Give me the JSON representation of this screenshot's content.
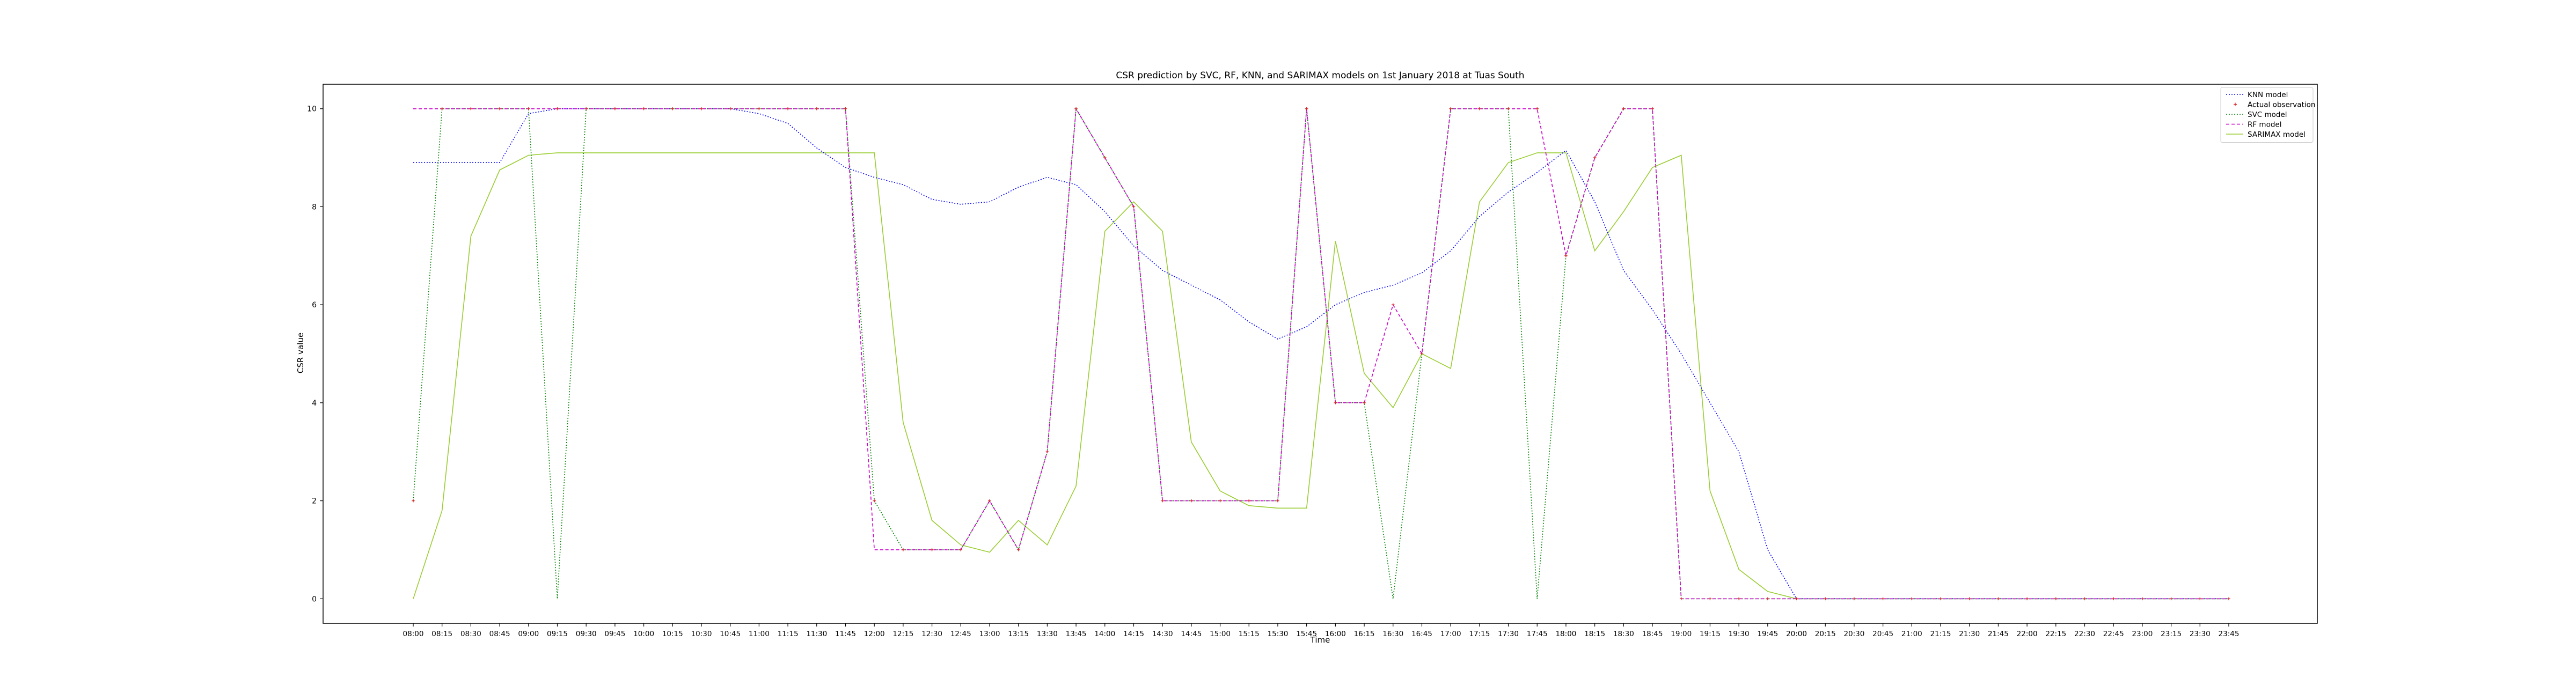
{
  "chart_data": {
    "type": "line",
    "title": "CSR prediction by SVC, RF, KNN, and SARIMAX models on 1st January 2018 at Tuas South",
    "xlabel": "Time",
    "ylabel": "CSR value",
    "ylim": [
      -0.5,
      10.5
    ],
    "yticks": [
      0,
      2,
      4,
      6,
      8,
      10
    ],
    "grid": false,
    "legend_position": "top-right",
    "categories": [
      "08:00",
      "08:15",
      "08:30",
      "08:45",
      "09:00",
      "09:15",
      "09:30",
      "09:45",
      "10:00",
      "10:15",
      "10:30",
      "10:45",
      "11:00",
      "11:15",
      "11:30",
      "11:45",
      "12:00",
      "12:15",
      "12:30",
      "12:45",
      "13:00",
      "13:15",
      "13:30",
      "13:45",
      "14:00",
      "14:15",
      "14:30",
      "14:45",
      "15:00",
      "15:15",
      "15:30",
      "15:45",
      "16:00",
      "16:15",
      "16:30",
      "16:45",
      "17:00",
      "17:15",
      "17:30",
      "17:45",
      "18:00",
      "18:15",
      "18:30",
      "18:45",
      "19:00",
      "19:15",
      "19:30",
      "19:45",
      "20:00",
      "20:15",
      "20:30",
      "20:45",
      "21:00",
      "21:15",
      "21:30",
      "21:45",
      "22:00",
      "22:15",
      "22:30",
      "22:45",
      "23:00",
      "23:15",
      "23:30",
      "23:45"
    ],
    "series": [
      {
        "name": "KNN model",
        "color": "#0000ff",
        "style": "dotted",
        "values": [
          8.9,
          8.9,
          8.9,
          8.9,
          9.9,
          10,
          10,
          10,
          10,
          10,
          10,
          10,
          9.9,
          9.7,
          9.2,
          8.8,
          8.6,
          8.45,
          8.15,
          8.05,
          8.1,
          8.4,
          8.6,
          8.45,
          7.9,
          7.2,
          6.7,
          6.4,
          6.1,
          5.65,
          5.3,
          5.55,
          6.0,
          6.25,
          6.4,
          6.65,
          7.1,
          7.8,
          8.3,
          8.7,
          9.15,
          8.1,
          6.7,
          5.9,
          5.0,
          4.0,
          3.0,
          1.0,
          0,
          0,
          0,
          0,
          0,
          0,
          0,
          0,
          0,
          0,
          0,
          0,
          0,
          0,
          0,
          0
        ]
      },
      {
        "name": "Actual observation",
        "color": "#d62728",
        "style": "markers",
        "values": [
          2,
          10,
          10,
          10,
          10,
          10,
          10,
          10,
          10,
          10,
          10,
          10,
          10,
          10,
          10,
          10,
          2,
          1,
          1,
          1,
          2,
          1,
          3,
          10,
          9,
          8,
          2,
          2,
          2,
          2,
          2,
          10,
          4,
          4,
          6,
          5,
          10,
          10,
          10,
          10,
          7,
          9,
          10,
          10,
          0,
          0,
          0,
          0,
          0,
          0,
          0,
          0,
          0,
          0,
          0,
          0,
          0,
          0,
          0,
          0,
          0,
          0,
          0,
          0
        ]
      },
      {
        "name": "SVC model",
        "color": "#008000",
        "style": "dotted",
        "values": [
          2,
          10,
          10,
          10,
          10,
          0,
          10,
          10,
          10,
          10,
          10,
          10,
          10,
          10,
          10,
          10,
          2,
          1,
          1,
          1,
          2,
          1,
          3,
          10,
          9,
          8,
          2,
          2,
          2,
          2,
          2,
          10,
          4,
          4,
          0,
          5,
          10,
          10,
          10,
          0,
          7,
          9,
          10,
          10,
          0,
          0,
          0,
          0,
          0,
          0,
          0,
          0,
          0,
          0,
          0,
          0,
          0,
          0,
          0,
          0,
          0,
          0,
          0,
          0
        ]
      },
      {
        "name": "RF model",
        "color": "#cc00cc",
        "style": "dashed",
        "values": [
          10,
          10,
          10,
          10,
          10,
          10,
          10,
          10,
          10,
          10,
          10,
          10,
          10,
          10,
          10,
          10,
          1,
          1,
          1,
          1,
          2,
          1,
          3,
          10,
          9,
          8,
          2,
          2,
          2,
          2,
          2,
          10,
          4,
          4,
          6,
          5,
          10,
          10,
          10,
          10,
          7,
          9,
          10,
          10,
          0,
          0,
          0,
          0,
          0,
          0,
          0,
          0,
          0,
          0,
          0,
          0,
          0,
          0,
          0,
          0,
          0,
          0,
          0,
          0
        ]
      },
      {
        "name": "SARIMAX model",
        "color": "#9acd32",
        "style": "solid",
        "values": [
          0,
          1.8,
          7.4,
          8.75,
          9.05,
          9.1,
          9.1,
          9.1,
          9.1,
          9.1,
          9.1,
          9.1,
          9.1,
          9.1,
          9.1,
          9.1,
          9.1,
          3.6,
          1.6,
          1.1,
          0.95,
          1.6,
          1.1,
          2.3,
          7.5,
          8.1,
          7.5,
          3.2,
          2.2,
          1.9,
          1.85,
          1.85,
          7.3,
          4.6,
          3.9,
          5.0,
          4.7,
          8.1,
          8.9,
          9.1,
          9.1,
          7.1,
          7.9,
          8.8,
          9.05,
          2.2,
          0.6,
          0.15,
          0,
          0,
          0,
          0,
          0,
          0,
          0,
          0,
          0,
          0,
          0,
          0,
          0,
          0,
          0,
          0
        ]
      }
    ]
  }
}
